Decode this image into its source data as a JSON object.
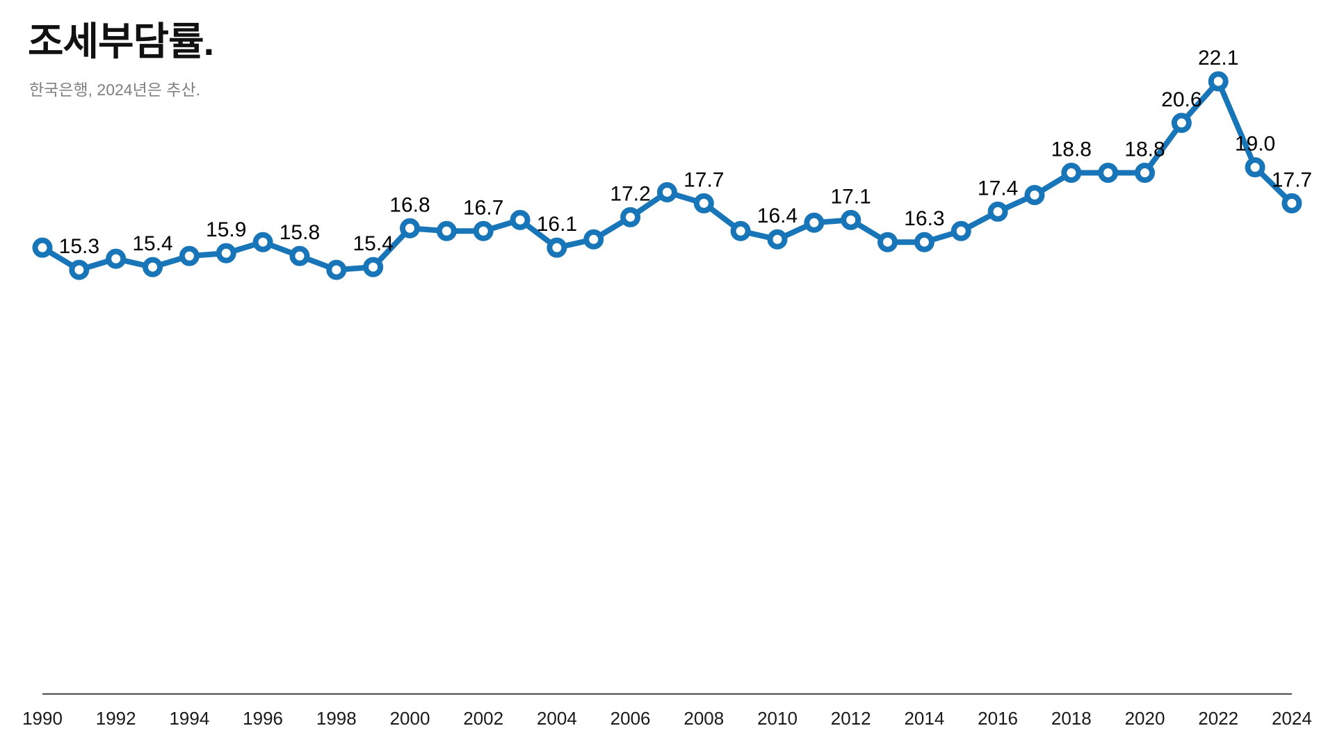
{
  "header": {
    "title": "조세부담률.",
    "subtitle": "한국은행, 2024년은 추산."
  },
  "chart_data": {
    "type": "line",
    "title": "조세부담률.",
    "subtitle": "한국은행, 2024년은 추산.",
    "unit": "%",
    "x": [
      1990,
      1991,
      1992,
      1993,
      1994,
      1995,
      1996,
      1997,
      1998,
      1999,
      2000,
      2001,
      2002,
      2003,
      2004,
      2005,
      2006,
      2007,
      2008,
      2009,
      2010,
      2011,
      2012,
      2013,
      2014,
      2015,
      2016,
      2017,
      2018,
      2019,
      2020,
      2021,
      2022,
      2023,
      2024
    ],
    "values": [
      16.1,
      15.3,
      15.7,
      15.4,
      15.8,
      15.9,
      16.3,
      15.8,
      15.3,
      15.4,
      16.8,
      16.7,
      16.7,
      17.1,
      16.1,
      16.4,
      17.2,
      18.1,
      17.7,
      16.7,
      16.4,
      17.0,
      17.1,
      16.3,
      16.3,
      16.7,
      17.4,
      18.0,
      18.8,
      18.8,
      18.8,
      20.6,
      22.1,
      19.0,
      17.7
    ],
    "labeled_points": [
      {
        "year": 1991,
        "label": "15.3"
      },
      {
        "year": 1993,
        "label": "15.4"
      },
      {
        "year": 1995,
        "label": "15.9"
      },
      {
        "year": 1997,
        "label": "15.8"
      },
      {
        "year": 1999,
        "label": "15.4"
      },
      {
        "year": 2000,
        "label": "16.8"
      },
      {
        "year": 2002,
        "label": "16.7"
      },
      {
        "year": 2004,
        "label": "16.1"
      },
      {
        "year": 2006,
        "label": "17.2"
      },
      {
        "year": 2008,
        "label": "17.7"
      },
      {
        "year": 2010,
        "label": "16.4"
      },
      {
        "year": 2012,
        "label": "17.1"
      },
      {
        "year": 2014,
        "label": "16.3"
      },
      {
        "year": 2016,
        "label": "17.4"
      },
      {
        "year": 2018,
        "label": "18.8"
      },
      {
        "year": 2020,
        "label": "18.8"
      },
      {
        "year": 2021,
        "label": "20.6"
      },
      {
        "year": 2022,
        "label": "22.1"
      },
      {
        "year": 2023,
        "label": "19.0"
      },
      {
        "year": 2024,
        "label": "17.7"
      }
    ],
    "x_tick_labels": [
      "1990",
      "1992",
      "1994",
      "1996",
      "1998",
      "2000",
      "2002",
      "2004",
      "2006",
      "2008",
      "2010",
      "2012",
      "2014",
      "2016",
      "2018",
      "2020",
      "2022",
      "2024"
    ],
    "xlim": [
      1990,
      2024
    ],
    "ylim": [
      0,
      22.1
    ],
    "grid": false,
    "legend": "none",
    "line_color": "#1876b8",
    "marker_fill": "#ffffff",
    "label_color": "#000000",
    "axis_line_color": "#4a4a4a",
    "axis_text_color": "#1a1a1a"
  }
}
